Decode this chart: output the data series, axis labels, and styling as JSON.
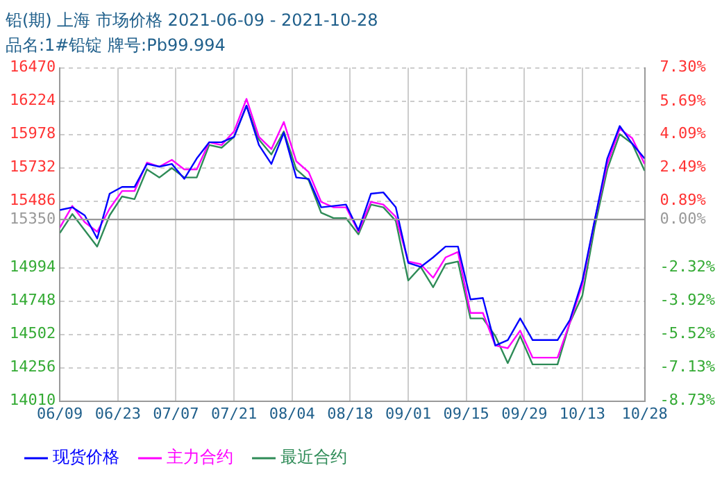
{
  "chart_data": {
    "type": "line",
    "title": "铅(期) 上海 市场价格 2021-06-09 - 2021-10-28",
    "subtitle": "品名:1#铅锭 牌号:Pb99.994",
    "x": [
      "2021-06-09",
      "2021-06-12",
      "2021-06-15",
      "2021-06-18",
      "2021-06-21",
      "2021-06-24",
      "2021-06-27",
      "2021-06-30",
      "2021-07-03",
      "2021-07-06",
      "2021-07-09",
      "2021-07-12",
      "2021-07-15",
      "2021-07-18",
      "2021-07-21",
      "2021-07-24",
      "2021-07-27",
      "2021-07-30",
      "2021-08-02",
      "2021-08-05",
      "2021-08-08",
      "2021-08-11",
      "2021-08-14",
      "2021-08-17",
      "2021-08-20",
      "2021-08-23",
      "2021-08-26",
      "2021-08-29",
      "2021-09-01",
      "2021-09-04",
      "2021-09-07",
      "2021-09-10",
      "2021-09-13",
      "2021-09-16",
      "2021-09-19",
      "2021-09-22",
      "2021-09-25",
      "2021-09-28",
      "2021-10-01",
      "2021-10-04",
      "2021-10-07",
      "2021-10-10",
      "2021-10-13",
      "2021-10-16",
      "2021-10-19",
      "2021-10-22",
      "2021-10-25",
      "2021-10-28"
    ],
    "series": [
      {
        "name": "现货价格",
        "color": "#0000ff",
        "values": [
          15420,
          15440,
          15380,
          15210,
          15540,
          15590,
          15590,
          15760,
          15740,
          15760,
          15650,
          15800,
          15920,
          15920,
          15960,
          16190,
          15900,
          15760,
          15990,
          15660,
          15650,
          15440,
          15450,
          15460,
          15270,
          15540,
          15550,
          15440,
          15030,
          15000,
          15070,
          15150,
          15150,
          14760,
          14770,
          14420,
          14460,
          14620,
          14460,
          14460,
          14460,
          14610,
          14900,
          15350,
          15800,
          16040,
          15910,
          15800
        ]
      },
      {
        "name": "主力合约",
        "color": "#ff00ff",
        "values": [
          15290,
          15450,
          15330,
          15260,
          15430,
          15560,
          15560,
          15770,
          15740,
          15790,
          15720,
          15720,
          15920,
          15900,
          16000,
          16240,
          15960,
          15870,
          16070,
          15780,
          15700,
          15480,
          15440,
          15440,
          15260,
          15480,
          15460,
          15370,
          15040,
          15020,
          14920,
          15070,
          15110,
          14660,
          14660,
          14420,
          14400,
          14530,
          14330,
          14330,
          14330,
          14590,
          14870,
          15350,
          15760,
          16020,
          15950,
          15760
        ]
      },
      {
        "name": "最近合约",
        "color": "#2e8b57",
        "values": [
          15250,
          15390,
          15270,
          15150,
          15380,
          15520,
          15500,
          15720,
          15660,
          15730,
          15660,
          15660,
          15900,
          15880,
          15960,
          16190,
          15940,
          15830,
          16000,
          15720,
          15640,
          15400,
          15360,
          15360,
          15240,
          15460,
          15440,
          15340,
          14900,
          15000,
          14850,
          15020,
          15040,
          14620,
          14620,
          14490,
          14290,
          14490,
          14280,
          14280,
          14280,
          14590,
          14790,
          15300,
          15720,
          15980,
          15910,
          15710
        ]
      }
    ],
    "xlim": [
      "2021-06-09",
      "2021-10-28"
    ],
    "xticks": [
      {
        "value": "2021-06-09",
        "label": "06/09"
      },
      {
        "value": "2021-06-23",
        "label": "06/23"
      },
      {
        "value": "2021-07-07",
        "label": "07/07"
      },
      {
        "value": "2021-07-21",
        "label": "07/21"
      },
      {
        "value": "2021-08-04",
        "label": "08/04"
      },
      {
        "value": "2021-08-18",
        "label": "08/18"
      },
      {
        "value": "2021-09-01",
        "label": "09/01"
      },
      {
        "value": "2021-09-15",
        "label": "09/15"
      },
      {
        "value": "2021-09-29",
        "label": "09/29"
      },
      {
        "value": "2021-10-13",
        "label": "10/13"
      },
      {
        "value": "2021-10-28",
        "label": "10/28"
      }
    ],
    "ylim": [
      14010,
      16470
    ],
    "yticks": [
      14010,
      14256,
      14502,
      14748,
      14994,
      15350,
      15486,
      15732,
      15978,
      16224,
      16470
    ],
    "y2lim": [
      -8.73,
      7.3
    ],
    "y2ticks": [
      {
        "value": -8.73,
        "label": "-8.73%"
      },
      {
        "value": -7.13,
        "label": "-7.13%"
      },
      {
        "value": -5.52,
        "label": "-5.52%"
      },
      {
        "value": -3.92,
        "label": "-3.92%"
      },
      {
        "value": -2.32,
        "label": "-2.32%"
      },
      {
        "value": 0,
        "label": "0.00%"
      },
      {
        "value": 0.89,
        "label": "0.89%"
      },
      {
        "value": 2.49,
        "label": "2.49%"
      },
      {
        "value": 4.09,
        "label": "4.09%"
      },
      {
        "value": 5.69,
        "label": "5.69%"
      },
      {
        "value": 7.3,
        "label": "7.30%"
      }
    ],
    "ref_lines": [
      {
        "axis": "y",
        "value": 15350,
        "color": "#999999"
      }
    ],
    "grid": true,
    "legend": "bottom",
    "marker": "none",
    "line_style": "solid"
  }
}
